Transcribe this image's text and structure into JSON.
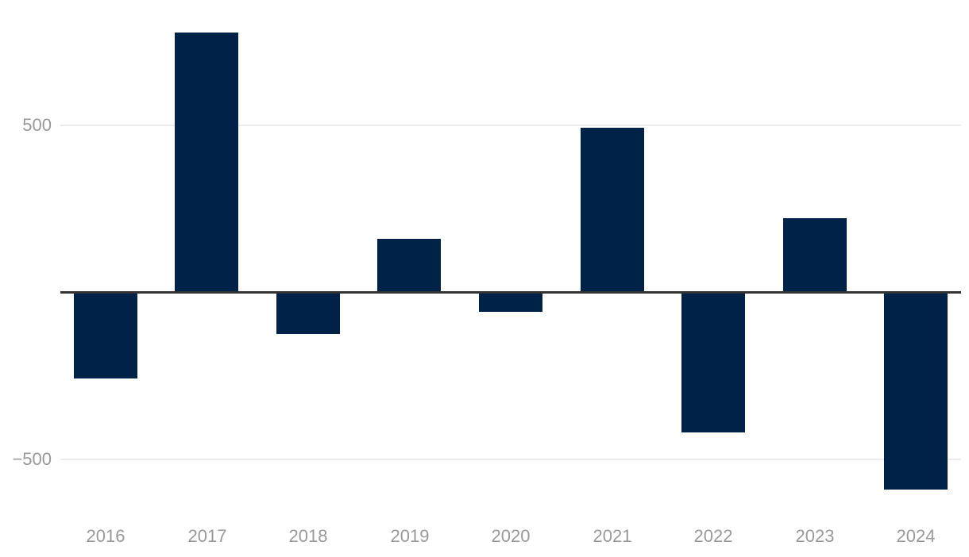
{
  "page": {
    "background": "#ffffff"
  },
  "chart_data": {
    "type": "bar",
    "title": "",
    "xlabel": "",
    "ylabel": "",
    "categories": [
      "2016",
      "2017",
      "2018",
      "2019",
      "2020",
      "2021",
      "2022",
      "2023",
      "2024"
    ],
    "values": [
      -255,
      775,
      -120,
      160,
      -55,
      490,
      -415,
      220,
      -585
    ],
    "ylim": [
      -640,
      875
    ],
    "yticks": [
      {
        "value": 500,
        "label": "500"
      },
      {
        "value": -500,
        "label": "−500"
      }
    ],
    "grid": "horizontal",
    "legend": "none",
    "zero_line": true,
    "bar_color": "#002248",
    "gridline_color": "#ececec",
    "zero_line_color": "#333333",
    "tick_label_color": "#999999"
  }
}
